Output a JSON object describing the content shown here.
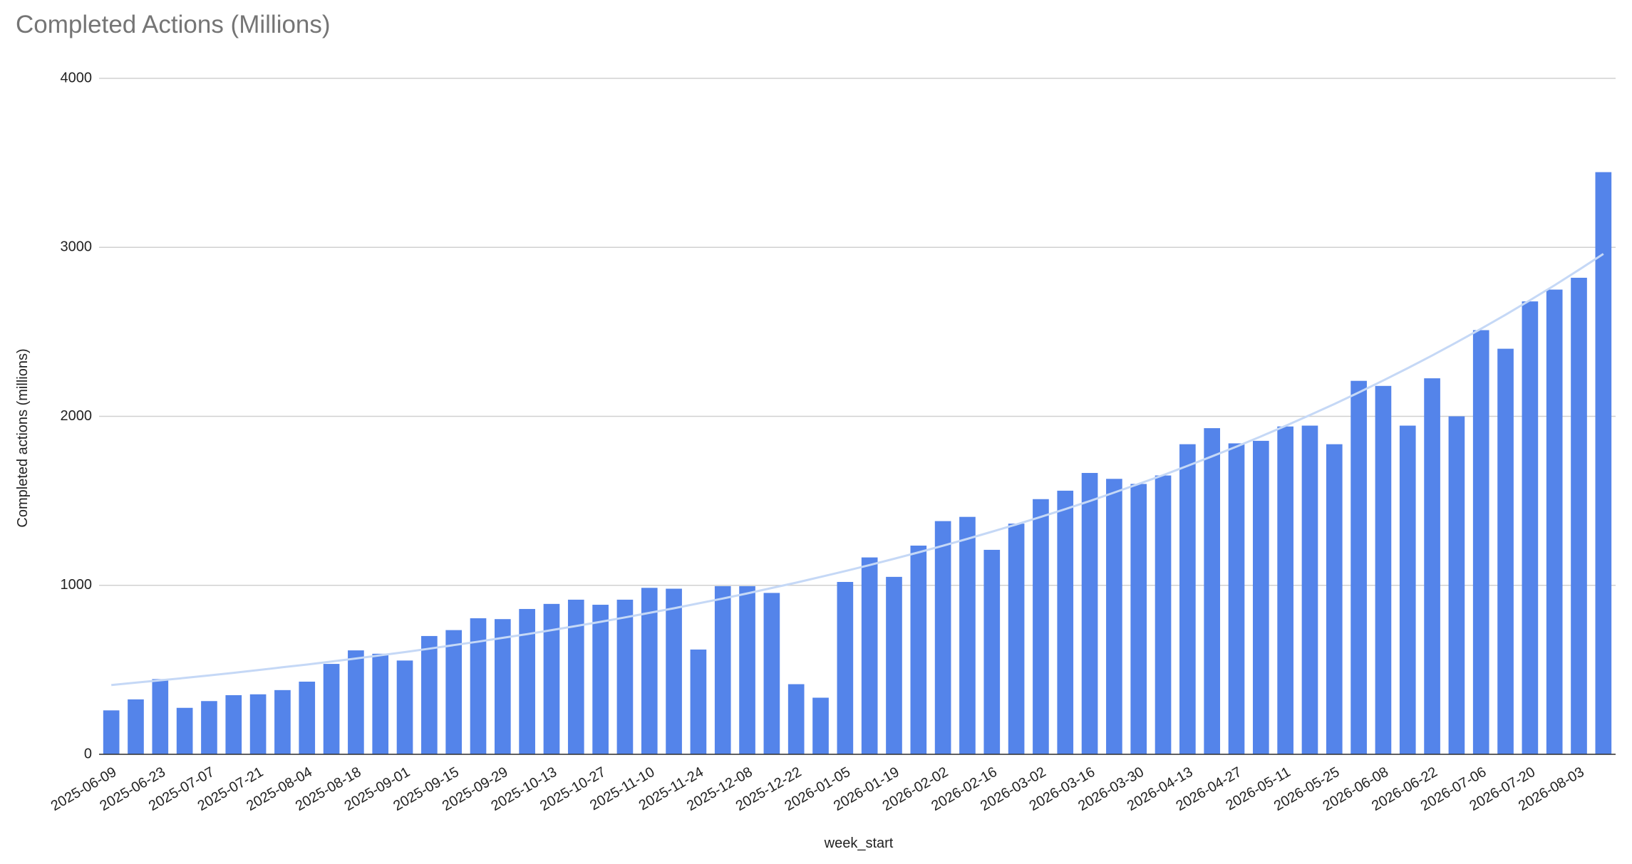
{
  "chart_data": {
    "type": "bar",
    "title": "Completed Actions (Millions)",
    "x_label": "week_start",
    "y_label": "Completed actions (millions)",
    "categories": [
      "2025-06-09",
      null,
      "2025-06-23",
      null,
      "2025-07-07",
      null,
      "2025-07-21",
      null,
      "2025-08-04",
      null,
      "2025-08-18",
      null,
      "2025-09-01",
      null,
      "2025-09-15",
      null,
      "2025-09-29",
      null,
      "2025-10-13",
      null,
      "2025-10-27",
      null,
      "2025-11-10",
      null,
      "2025-11-24",
      null,
      "2025-12-08",
      null,
      "2025-12-22",
      null,
      "2026-01-05",
      null,
      "2026-01-19",
      null,
      "2026-02-02",
      null,
      "2026-02-16",
      null,
      "2026-03-02",
      null,
      "2026-03-16",
      null,
      "2026-03-30",
      null,
      "2026-04-13",
      null,
      "2026-04-27",
      null,
      "2026-05-11",
      null,
      "2026-05-25",
      null,
      "2026-06-08",
      null,
      "2026-06-22",
      null,
      "2026-07-06",
      null,
      "2026-07-20",
      null,
      "2026-08-03",
      null
    ],
    "values": [
      260,
      325,
      445,
      275,
      315,
      350,
      355,
      380,
      430,
      535,
      615,
      595,
      555,
      700,
      735,
      805,
      800,
      860,
      890,
      915,
      885,
      915,
      985,
      980,
      620,
      995,
      995,
      955,
      415,
      335,
      1020,
      1165,
      1050,
      1235,
      1380,
      1405,
      1210,
      1365,
      1510,
      1560,
      1665,
      1630,
      1600,
      1650,
      1835,
      1930,
      1840,
      1855,
      1940,
      1945,
      1835,
      2210,
      2180,
      1945,
      2225,
      2000,
      2510,
      2400,
      2680,
      2750,
      2820,
      3445
    ],
    "color": "#5484ea",
    "trendline": {
      "color": "#c5d8f6",
      "values": [
        410,
        424,
        438,
        452,
        467,
        482,
        498,
        515,
        531,
        549,
        567,
        586,
        605,
        625,
        646,
        667,
        689,
        711,
        735,
        759,
        784,
        810,
        837,
        864,
        893,
        922,
        952,
        984,
        1016,
        1050,
        1084,
        1120,
        1157,
        1195,
        1234,
        1275,
        1317,
        1360,
        1405,
        1451,
        1499,
        1549,
        1600,
        1652,
        1707,
        1763,
        1821,
        1881,
        1943,
        2007,
        2073,
        2141,
        2212,
        2285,
        2360,
        2438,
        2518,
        2601,
        2687,
        2775,
        2867,
        2961
      ]
    },
    "ylim": [
      0,
      4000
    ],
    "yticks": [
      0,
      1000,
      2000,
      3000,
      4000
    ],
    "grid": true
  }
}
